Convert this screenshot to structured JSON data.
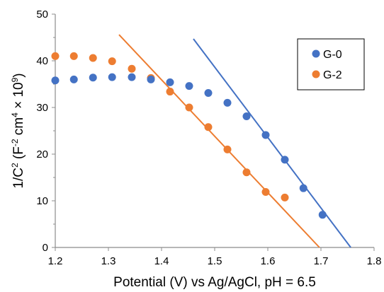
{
  "chart_data": {
    "type": "scatter",
    "title": "",
    "xlabel": "Potential (V) vs Ag/AgCl, pH = 6.5",
    "ylabel_parts": {
      "lead": "1/C",
      "sup1": "2",
      "mid1": " (F",
      "sup2": "-2",
      "mid2": " cm",
      "sup3": "4",
      "mid3": " × 10",
      "sup4": "9",
      "tail": ")"
    },
    "xlim": [
      1.2,
      1.8
    ],
    "ylim": [
      0,
      50
    ],
    "x_ticks": [
      "1.2",
      "1.3",
      "1.4",
      "1.5",
      "1.6",
      "1.7",
      "1.8"
    ],
    "y_ticks": [
      "0",
      "10",
      "20",
      "30",
      "40",
      "50"
    ],
    "grid": false,
    "legend_position": "top-right",
    "series": [
      {
        "name": "G-0",
        "color": "#4472c4",
        "points": [
          [
            1.2,
            35.8
          ],
          [
            1.235,
            36.0
          ],
          [
            1.271,
            36.4
          ],
          [
            1.307,
            36.5
          ],
          [
            1.344,
            36.5
          ],
          [
            1.38,
            36.0
          ],
          [
            1.416,
            35.4
          ],
          [
            1.452,
            34.6
          ],
          [
            1.488,
            33.1
          ],
          [
            1.524,
            31.0
          ],
          [
            1.56,
            28.1
          ],
          [
            1.596,
            24.1
          ],
          [
            1.632,
            18.8
          ],
          [
            1.667,
            12.7
          ],
          [
            1.703,
            7.0
          ]
        ],
        "fit_line": [
          [
            1.46,
            44.7
          ],
          [
            1.776,
            -3.0
          ]
        ]
      },
      {
        "name": "G-2",
        "color": "#ed7d31",
        "points": [
          [
            1.2,
            41.0
          ],
          [
            1.235,
            41.0
          ],
          [
            1.271,
            40.6
          ],
          [
            1.307,
            39.9
          ],
          [
            1.344,
            38.3
          ],
          [
            1.38,
            36.3
          ],
          [
            1.416,
            33.4
          ],
          [
            1.452,
            30.0
          ],
          [
            1.488,
            25.8
          ],
          [
            1.524,
            21.0
          ],
          [
            1.56,
            16.1
          ],
          [
            1.596,
            11.9
          ],
          [
            1.632,
            10.7
          ]
        ],
        "fit_line": [
          [
            1.32,
            45.6
          ],
          [
            1.722,
            -3.0
          ]
        ]
      }
    ]
  }
}
